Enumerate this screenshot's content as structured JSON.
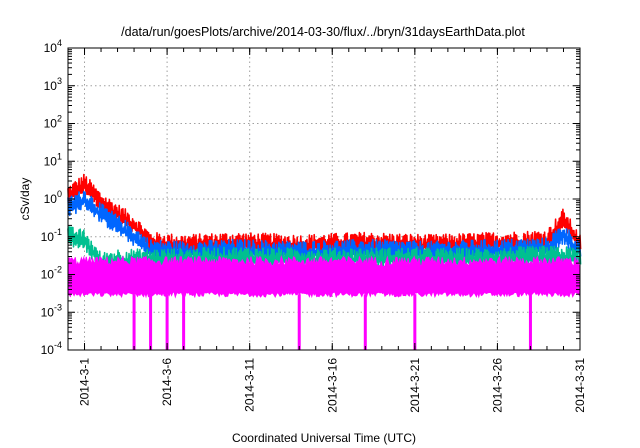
{
  "chart_data": {
    "type": "line",
    "title": "/data/run/goesPlots/archive/2014-03-30/flux/../bryn/31daysEarthData.plot",
    "xlabel": "Coordinated Universal Time (UTC)",
    "ylabel": "cSv/day",
    "y_scale": "log",
    "ylim": [
      0.0001,
      10000
    ],
    "xlim": [
      "2014-02-28",
      "2014-03-31"
    ],
    "x_tick_labels": [
      "2014-3-1",
      "2014-3-6",
      "2014-3-11",
      "2014-3-16",
      "2014-3-21",
      "2014-3-26",
      "2014-3-31"
    ],
    "x_tick_dates": [
      "2014-03-01",
      "2014-03-06",
      "2014-03-11",
      "2014-03-16",
      "2014-03-21",
      "2014-03-26",
      "2014-03-31"
    ],
    "y_tick_labels": [
      {
        "base": "10",
        "exp": "-4",
        "value": 0.0001
      },
      {
        "base": "10",
        "exp": "-3",
        "value": 0.001
      },
      {
        "base": "10",
        "exp": "-2",
        "value": 0.01
      },
      {
        "base": "10",
        "exp": "-1",
        "value": 0.1
      },
      {
        "base": "10",
        "exp": "0",
        "value": 1
      },
      {
        "base": "10",
        "exp": "1",
        "value": 10
      },
      {
        "base": "10",
        "exp": "2",
        "value": 100
      },
      {
        "base": "10",
        "exp": "3",
        "value": 1000
      },
      {
        "base": "10",
        "exp": "4",
        "value": 10000
      }
    ],
    "grid": true,
    "legend": "none",
    "series": [
      {
        "color": "#ff0000",
        "x": [
          "2014-02-28",
          "2014-03-01",
          "2014-03-02",
          "2014-03-03",
          "2014-03-04",
          "2014-03-05",
          "2014-03-07",
          "2014-03-10",
          "2014-03-14",
          "2014-03-18",
          "2014-03-22",
          "2014-03-26",
          "2014-03-29",
          "2014-03-30",
          "2014-03-31"
        ],
        "y": [
          1.2,
          2.5,
          0.8,
          0.4,
          0.2,
          0.07,
          0.06,
          0.07,
          0.06,
          0.07,
          0.06,
          0.07,
          0.08,
          0.3,
          0.06
        ]
      },
      {
        "color": "#0066ff",
        "x": [
          "2014-02-28",
          "2014-03-01",
          "2014-03-02",
          "2014-03-03",
          "2014-03-04",
          "2014-03-05",
          "2014-03-07",
          "2014-03-10",
          "2014-03-14",
          "2014-03-18",
          "2014-03-22",
          "2014-03-26",
          "2014-03-29",
          "2014-03-30",
          "2014-03-31"
        ],
        "y": [
          0.6,
          1.0,
          0.4,
          0.2,
          0.1,
          0.045,
          0.04,
          0.045,
          0.04,
          0.045,
          0.04,
          0.045,
          0.05,
          0.12,
          0.04
        ]
      },
      {
        "color": "#00c090",
        "x": [
          "2014-02-28",
          "2014-03-01",
          "2014-03-02",
          "2014-03-03",
          "2014-03-05",
          "2014-03-10",
          "2014-03-15",
          "2014-03-20",
          "2014-03-25",
          "2014-03-29",
          "2014-03-31"
        ],
        "y": [
          0.1,
          0.08,
          0.02,
          0.025,
          0.025,
          0.028,
          0.026,
          0.027,
          0.026,
          0.03,
          0.028
        ]
      },
      {
        "color": "#ff00ff",
        "x": [
          "2014-02-28",
          "2014-03-02",
          "2014-03-06",
          "2014-03-10",
          "2014-03-14",
          "2014-03-18",
          "2014-03-22",
          "2014-03-26",
          "2014-03-31"
        ],
        "y": [
          0.008,
          0.008,
          0.008,
          0.008,
          0.008,
          0.008,
          0.008,
          0.008,
          0.008
        ],
        "band": [
          0.003,
          0.02
        ],
        "drops_to": 0.0001,
        "drop_dates": [
          "2014-03-04",
          "2014-03-05",
          "2014-03-06",
          "2014-03-07",
          "2014-03-14",
          "2014-03-18",
          "2014-03-21",
          "2014-03-28"
        ]
      }
    ]
  }
}
